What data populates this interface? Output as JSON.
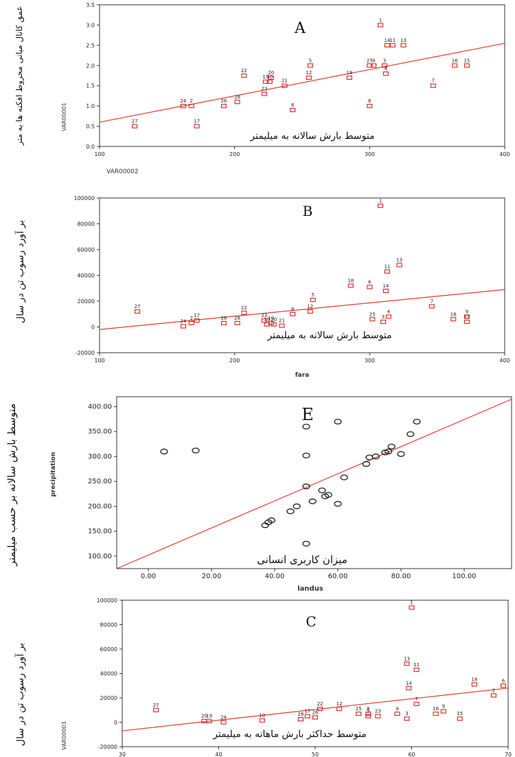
{
  "chart_data": [
    {
      "type": "scatter",
      "panel_label": "A",
      "xlabel_fa": "متوسط بارش سالانه به میلیمتر",
      "xlabel_var": "VAR00002",
      "ylabel_fa": "عمق کانال میانی مخروط افکنه ها به متر",
      "ylabel_var": "VAR00001",
      "xlim": [
        100,
        400
      ],
      "ylim": [
        0,
        3.5
      ],
      "xticks": [
        "100",
        "200",
        "300",
        "400"
      ],
      "yticks": [
        "0.0",
        "0.5",
        "1.0",
        "1.5",
        "2.0",
        "2.5",
        "3.0",
        "3.5"
      ],
      "marker": "square",
      "color": "#e0201a",
      "points": [
        {
          "label": "27",
          "x": 126,
          "y": 0.5
        },
        {
          "label": "17",
          "x": 172,
          "y": 0.5
        },
        {
          "label": "24",
          "x": 162,
          "y": 1.0
        },
        {
          "label": "2",
          "x": 168,
          "y": 1.0
        },
        {
          "label": "26",
          "x": 192,
          "y": 1.0
        },
        {
          "label": "28",
          "x": 202,
          "y": 1.1
        },
        {
          "label": "22",
          "x": 207,
          "y": 1.75
        },
        {
          "label": "23",
          "x": 222,
          "y": 1.3
        },
        {
          "label": "19",
          "x": 223,
          "y": 1.6
        },
        {
          "label": "10",
          "x": 226,
          "y": 1.6
        },
        {
          "label": "20",
          "x": 227,
          "y": 1.7
        },
        {
          "label": "21",
          "x": 237,
          "y": 1.5
        },
        {
          "label": "8",
          "x": 243,
          "y": 0.9
        },
        {
          "label": "12",
          "x": 255,
          "y": 1.7
        },
        {
          "label": "5",
          "x": 256,
          "y": 2.0
        },
        {
          "label": "18",
          "x": 285,
          "y": 1.7
        },
        {
          "label": "6",
          "x": 300,
          "y": 1.0
        },
        {
          "label": "25",
          "x": 300,
          "y": 2.0
        },
        {
          "label": "9",
          "x": 303,
          "y": 2.0
        },
        {
          "label": "3",
          "x": 311,
          "y": 2.0
        },
        {
          "label": "4",
          "x": 312,
          "y": 1.8
        },
        {
          "label": "1",
          "x": 308,
          "y": 3.0
        },
        {
          "label": "14",
          "x": 313,
          "y": 2.5
        },
        {
          "label": "11",
          "x": 317,
          "y": 2.5
        },
        {
          "label": "13",
          "x": 325,
          "y": 2.5
        },
        {
          "label": "7",
          "x": 347,
          "y": 1.5
        },
        {
          "label": "16",
          "x": 363,
          "y": 2.0
        },
        {
          "label": "15",
          "x": 372,
          "y": 2.0
        }
      ],
      "fit_line": {
        "x": [
          100,
          400
        ],
        "y": [
          0.6,
          2.55
        ]
      }
    },
    {
      "type": "scatter",
      "panel_label": "B",
      "xlabel_fa": "متوسط بارش سالانه به میلیمتر",
      "xlabel_var": "fara",
      "ylabel_fa": "بر آورد رسوب تن در سال",
      "xlim": [
        100,
        400
      ],
      "ylim": [
        -20000,
        100000
      ],
      "xticks": [
        "100",
        "200",
        "300",
        "400"
      ],
      "yticks": [
        "-20000",
        "0",
        "20000",
        "40000",
        "60000",
        "80000",
        "100000"
      ],
      "marker": "square",
      "color": "#e0201a",
      "points": [
        {
          "label": "27",
          "x": 128,
          "y": 12000
        },
        {
          "label": "24",
          "x": 162,
          "y": 500
        },
        {
          "label": "2",
          "x": 168,
          "y": 3000
        },
        {
          "label": "17",
          "x": 172,
          "y": 5000
        },
        {
          "label": "26",
          "x": 192,
          "y": 3000
        },
        {
          "label": "28",
          "x": 202,
          "y": 3000
        },
        {
          "label": "22",
          "x": 207,
          "y": 11000
        },
        {
          "label": "23",
          "x": 222,
          "y": 5000
        },
        {
          "label": "19",
          "x": 224,
          "y": 2000
        },
        {
          "label": "10",
          "x": 227,
          "y": 3000
        },
        {
          "label": "20",
          "x": 229,
          "y": 2000
        },
        {
          "label": "21",
          "x": 235,
          "y": 1000
        },
        {
          "label": "8",
          "x": 243,
          "y": 10000
        },
        {
          "label": "12",
          "x": 256,
          "y": 12000
        },
        {
          "label": "5",
          "x": 258,
          "y": 21000
        },
        {
          "label": "18",
          "x": 286,
          "y": 32000
        },
        {
          "label": "6",
          "x": 300,
          "y": 31000
        },
        {
          "label": "25",
          "x": 302,
          "y": 6000
        },
        {
          "label": "3",
          "x": 310,
          "y": 4000
        },
        {
          "label": "4",
          "x": 314,
          "y": 8000
        },
        {
          "label": "1",
          "x": 308,
          "y": 94000
        },
        {
          "label": "14",
          "x": 312,
          "y": 28000
        },
        {
          "label": "11",
          "x": 313,
          "y": 43000
        },
        {
          "label": "13",
          "x": 322,
          "y": 48000
        },
        {
          "label": "7",
          "x": 346,
          "y": 16000
        },
        {
          "label": "16",
          "x": 362,
          "y": 6000
        },
        {
          "label": "9",
          "x": 372,
          "y": 8000
        },
        {
          "label": "15",
          "x": 372,
          "y": 4000
        }
      ],
      "fit_line": {
        "x": [
          100,
          400
        ],
        "y": [
          -2000,
          29000
        ]
      }
    },
    {
      "type": "scatter",
      "panel_label": "E",
      "xlabel_fa": "میزان کاربری انسانی",
      "xlabel_var": "landus",
      "ylabel_fa": "متوسط بارش سالانه بر حسب میلیمتر",
      "ylabel_var": "precipitation",
      "xlim": [
        -10,
        115
      ],
      "ylim": [
        75,
        420
      ],
      "xticks": [
        "0.00",
        "20.00",
        "40.00",
        "60.00",
        "80.00",
        "100.00"
      ],
      "yticks": [
        "100.00",
        "150.00",
        "200.00",
        "250.00",
        "300.00",
        "350.00",
        "400.00"
      ],
      "marker": "circle",
      "color": "#222222",
      "points": [
        {
          "x": 5,
          "y": 310
        },
        {
          "x": 15,
          "y": 312
        },
        {
          "x": 37,
          "y": 162
        },
        {
          "x": 38,
          "y": 168
        },
        {
          "x": 39,
          "y": 172
        },
        {
          "x": 45,
          "y": 190
        },
        {
          "x": 47,
          "y": 200
        },
        {
          "x": 50,
          "y": 125
        },
        {
          "x": 50,
          "y": 240
        },
        {
          "x": 50,
          "y": 302
        },
        {
          "x": 50,
          "y": 360
        },
        {
          "x": 52,
          "y": 210
        },
        {
          "x": 55,
          "y": 232
        },
        {
          "x": 56,
          "y": 220
        },
        {
          "x": 57,
          "y": 223
        },
        {
          "x": 60,
          "y": 205
        },
        {
          "x": 60,
          "y": 370
        },
        {
          "x": 62,
          "y": 258
        },
        {
          "x": 69,
          "y": 285
        },
        {
          "x": 70,
          "y": 298
        },
        {
          "x": 72,
          "y": 300
        },
        {
          "x": 75,
          "y": 308
        },
        {
          "x": 76,
          "y": 310
        },
        {
          "x": 77,
          "y": 320
        },
        {
          "x": 80,
          "y": 305
        },
        {
          "x": 83,
          "y": 345
        },
        {
          "x": 85,
          "y": 370
        }
      ],
      "fit_line": {
        "x": [
          -10,
          115
        ],
        "y": [
          75,
          415
        ]
      }
    },
    {
      "type": "scatter",
      "panel_label": "C",
      "xlabel_fa": "متوسط حداکثر بارش ماهانه به میلیمتر",
      "ylabel_fa": "بر آورد رسوب تن در سال",
      "ylabel_var": "VAR00003",
      "xlim": [
        30,
        70
      ],
      "ylim": [
        -20000,
        100000
      ],
      "xticks": [
        "30",
        "40",
        "50",
        "60",
        "70"
      ],
      "yticks": [
        "-20000",
        "0",
        "20000",
        "40000",
        "60000",
        "80000",
        "100000"
      ],
      "marker": "square",
      "color": "#e0201a",
      "points": [
        {
          "label": "27",
          "x": 33.5,
          "y": 10000
        },
        {
          "label": "20",
          "x": 38.5,
          "y": 1000
        },
        {
          "label": "19",
          "x": 39,
          "y": 1000
        },
        {
          "label": "24",
          "x": 40.5,
          "y": 0
        },
        {
          "label": "10",
          "x": 44.5,
          "y": 1500
        },
        {
          "label": "28",
          "x": 48.5,
          "y": 2500
        },
        {
          "label": "17",
          "x": 49.2,
          "y": 5000
        },
        {
          "label": "26",
          "x": 50,
          "y": 4000
        },
        {
          "label": "22",
          "x": 50.5,
          "y": 11000
        },
        {
          "label": "12",
          "x": 52.5,
          "y": 11000
        },
        {
          "label": "25",
          "x": 54.5,
          "y": 7000
        },
        {
          "label": "8",
          "x": 55.5,
          "y": 7000
        },
        {
          "label": "5",
          "x": 55.5,
          "y": 5000
        },
        {
          "label": "23",
          "x": 56.5,
          "y": 5000
        },
        {
          "label": "4",
          "x": 58.5,
          "y": 7000
        },
        {
          "label": "3",
          "x": 59.5,
          "y": 3000
        },
        {
          "label": "1",
          "x": 60,
          "y": 94000
        },
        {
          "label": "13",
          "x": 59.5,
          "y": 48000
        },
        {
          "label": "11",
          "x": 60.5,
          "y": 43000
        },
        {
          "label": "14",
          "x": 59.7,
          "y": 28000
        },
        {
          "label": "7",
          "x": 60.5,
          "y": 15000
        },
        {
          "label": "16",
          "x": 62.5,
          "y": 7000
        },
        {
          "label": "9",
          "x": 63.3,
          "y": 9000
        },
        {
          "label": "15",
          "x": 65,
          "y": 3000
        },
        {
          "label": "18",
          "x": 66.5,
          "y": 31000
        },
        {
          "label": "2",
          "x": 68.5,
          "y": 22000
        },
        {
          "label": "6",
          "x": 69.5,
          "y": 30000
        }
      ],
      "fit_line": {
        "x": [
          30,
          70
        ],
        "y": [
          -7000,
          28000
        ]
      }
    }
  ]
}
